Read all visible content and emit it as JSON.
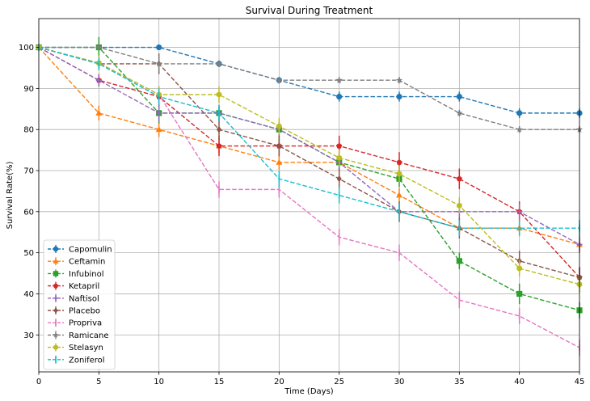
{
  "chart_data": {
    "type": "line",
    "title": "Survival During Treatment",
    "xlabel": "Time (Days)",
    "ylabel": "Survival Rate(%)",
    "x": [
      0,
      5,
      10,
      15,
      20,
      25,
      30,
      35,
      40,
      45
    ],
    "xlim": [
      0,
      45
    ],
    "ylim": [
      21,
      107
    ],
    "xticks": [
      0,
      5,
      10,
      15,
      20,
      25,
      30,
      35,
      40,
      45
    ],
    "yticks": [
      30,
      40,
      50,
      60,
      70,
      80,
      90,
      100
    ],
    "grid": true,
    "legend_position": "lower-left",
    "series": [
      {
        "name": "Capomulin",
        "color": "#1f77b4",
        "marker": "circle",
        "values": [
          100,
          100,
          100,
          96,
          92,
          88,
          88,
          88,
          84,
          84
        ],
        "errors": [
          0,
          0,
          0,
          0.8,
          0.8,
          1.2,
          1.2,
          1.2,
          1.2,
          1.2
        ]
      },
      {
        "name": "Ceftamin",
        "color": "#ff7f0e",
        "marker": "triangle-up",
        "values": [
          100,
          84,
          80,
          76,
          72,
          72,
          64,
          56,
          56,
          52
        ],
        "errors": [
          0,
          1.8,
          1.8,
          1.8,
          1.8,
          1.8,
          1.8,
          1.6,
          1.6,
          1.6
        ]
      },
      {
        "name": "Infubinol",
        "color": "#2ca02c",
        "marker": "square",
        "values": [
          100,
          100,
          84,
          84,
          80,
          72,
          68,
          48,
          40,
          36
        ],
        "errors": [
          0,
          2.5,
          2.5,
          1.5,
          1.5,
          2.0,
          2.0,
          2.0,
          2.5,
          2.0
        ]
      },
      {
        "name": "Ketapril",
        "color": "#d62728",
        "marker": "pentagon",
        "values": [
          100,
          92,
          88,
          76,
          76,
          76,
          72,
          68,
          60,
          44
        ],
        "errors": [
          0,
          1.5,
          2.5,
          2.5,
          2.5,
          2.5,
          2.5,
          2.5,
          2.5,
          2.5
        ]
      },
      {
        "name": "Naftisol",
        "color": "#9467bd",
        "marker": "plus",
        "values": [
          100,
          92,
          84,
          84,
          80,
          72,
          60,
          60,
          60,
          52
        ],
        "errors": [
          0,
          1.5,
          2.0,
          2.0,
          2.0,
          2.0,
          2.0,
          2.0,
          2.0,
          2.0
        ]
      },
      {
        "name": "Placebo",
        "color": "#8c564b",
        "marker": "diamond",
        "values": [
          100,
          96,
          96,
          80,
          76,
          68,
          60,
          56,
          48,
          44
        ],
        "errors": [
          0,
          1.5,
          2.5,
          2.5,
          2.5,
          2.5,
          2.5,
          2.5,
          2.5,
          2.5
        ]
      },
      {
        "name": "Propriva",
        "color": "#e377c2",
        "marker": "vline",
        "values": [
          100,
          96.2,
          88.5,
          65.4,
          65.4,
          53.8,
          50,
          38.5,
          34.6,
          26.9
        ],
        "errors": [
          0,
          1.8,
          2.0,
          2.0,
          2.0,
          2.0,
          2.0,
          2.0,
          2.0,
          2.0
        ]
      },
      {
        "name": "Ramicane",
        "color": "#7f7f7f",
        "marker": "star",
        "values": [
          100,
          100,
          96,
          96,
          92,
          92,
          92,
          84,
          80,
          80
        ],
        "errors": [
          0,
          0,
          2.0,
          0.8,
          0.8,
          0.8,
          0.8,
          0.8,
          0.8,
          0.8
        ]
      },
      {
        "name": "Stelasyn",
        "color": "#bcbd22",
        "marker": "hexagon",
        "values": [
          100,
          96.2,
          88.5,
          88.5,
          80.8,
          73.1,
          69.2,
          61.5,
          46.2,
          42.3
        ],
        "errors": [
          0,
          1.8,
          2.0,
          2.0,
          2.0,
          2.0,
          2.0,
          2.0,
          2.0,
          2.0
        ]
      },
      {
        "name": "Zoniferol",
        "color": "#17becf",
        "marker": "vline",
        "values": [
          100,
          96,
          88,
          84,
          68,
          64,
          60,
          56,
          56,
          56
        ],
        "errors": [
          0,
          1.5,
          2.0,
          2.0,
          2.0,
          2.0,
          2.0,
          2.0,
          2.0,
          2.0
        ]
      }
    ]
  }
}
